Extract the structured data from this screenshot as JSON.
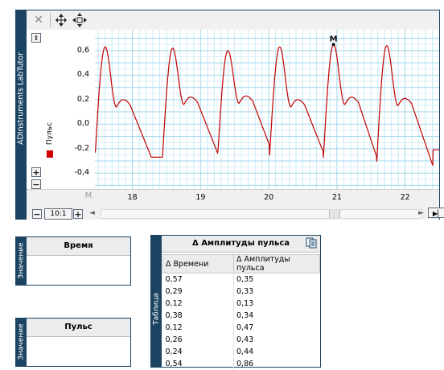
{
  "chart_window": {
    "title": "ADInstruments LabTutor",
    "toolbar": {
      "close_icon": "close-icon",
      "zoom_vertical_icon": "zoom-vertical-icon",
      "move_icon": "move-icon"
    },
    "zoom_ratio": "10:1",
    "marker_label": "M",
    "marker_cursor": "M"
  },
  "chart_data": {
    "type": "line",
    "series": [
      {
        "name": "Пульс",
        "color": "#c40000"
      }
    ],
    "x_ticks": [
      "18",
      "19",
      "20",
      "21",
      "22"
    ],
    "y_ticks": [
      "0,6",
      "0,4",
      "0,2",
      "0,0",
      "-0,2",
      "-0,4"
    ],
    "xlim": [
      17.45,
      22.5
    ],
    "ylim": [
      -0.53,
      0.77
    ],
    "peaks_x": [
      17.6,
      18.59,
      19.4,
      20.16,
      20.95,
      21.73
    ],
    "peaks_y": [
      0.63,
      0.62,
      0.6,
      0.63,
      0.65,
      0.64
    ],
    "notch_y": [
      0.2,
      0.22,
      0.23,
      0.2,
      0.22,
      0.21
    ],
    "troughs_y": [
      -0.28,
      -0.27,
      -0.26,
      -0.27,
      -0.28,
      -0.34
    ],
    "start_y": -0.22,
    "end_y": -0.21,
    "grid": true
  },
  "panel_time": {
    "side": "Значение",
    "header": "Время"
  },
  "panel_pulse": {
    "side": "Значение",
    "header": "Пульс"
  },
  "table_panel": {
    "side": "Таблица",
    "header": "Δ Амплитуды пульса",
    "columns": [
      "Δ Времени",
      "Δ Амплитуды пульса"
    ],
    "rows": [
      [
        "0,57",
        "0,35"
      ],
      [
        "0,29",
        "0,33"
      ],
      [
        "0,12",
        "0,13"
      ],
      [
        "0,38",
        "0,34"
      ],
      [
        "0,12",
        "0,47"
      ],
      [
        "0,26",
        "0,43"
      ],
      [
        "0,24",
        "0,44"
      ],
      [
        "0,54",
        "0,86"
      ]
    ]
  }
}
